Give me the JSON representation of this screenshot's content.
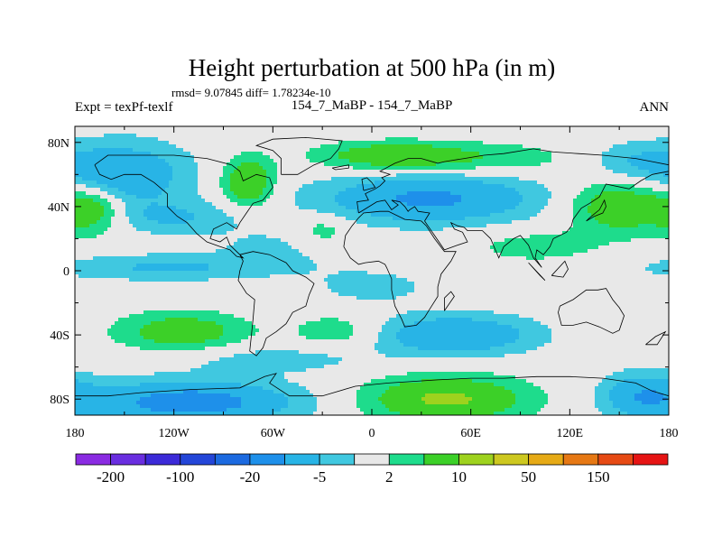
{
  "chart_data": {
    "type": "heatmap",
    "title": "Height perturbation at 500 hPa (in m)",
    "stats_text": "rmsd= 9.07845 diff= 1.78234e-10",
    "left_label": "Expt = texPf-texlf",
    "center_label": "154_7_MaBP - 154_7_MaBP",
    "right_label": "ANN",
    "xlim": [
      -180,
      180
    ],
    "ylim": [
      -90,
      90
    ],
    "x_ticks": [
      {
        "value": -180,
        "label": "180"
      },
      {
        "value": -120,
        "label": "120W"
      },
      {
        "value": -60,
        "label": "60W"
      },
      {
        "value": 0,
        "label": "0"
      },
      {
        "value": 60,
        "label": "60E"
      },
      {
        "value": 120,
        "label": "120E"
      },
      {
        "value": 180,
        "label": "180"
      }
    ],
    "y_ticks": [
      {
        "value": 80,
        "label": "80N"
      },
      {
        "value": 40,
        "label": "40N"
      },
      {
        "value": 0,
        "label": "0"
      },
      {
        "value": -40,
        "label": "40S"
      },
      {
        "value": -80,
        "label": "80S"
      }
    ],
    "colorbar": {
      "colors": [
        "#8a2be2",
        "#6a2ee0",
        "#3c2ad8",
        "#2446d8",
        "#1c6ae0",
        "#1e90ea",
        "#28b4e6",
        "#40c8e0",
        "#e8e8e8",
        "#1edc8c",
        "#3cd028",
        "#9ed21e",
        "#cdc820",
        "#e6aa16",
        "#e67814",
        "#e64a14",
        "#e61414"
      ],
      "labels": [
        {
          "after_box": 1,
          "text": "-200"
        },
        {
          "after_box": 3,
          "text": "-100"
        },
        {
          "after_box": 5,
          "text": "-20"
        },
        {
          "after_box": 7,
          "text": "-5"
        },
        {
          "after_box": 9,
          "text": "2"
        },
        {
          "after_box": 11,
          "text": "10"
        },
        {
          "after_box": 13,
          "text": "50"
        },
        {
          "after_box": 15,
          "text": "150"
        }
      ]
    },
    "field_blobs": [
      {
        "lon": -150,
        "lat": 60,
        "rx": 38,
        "ry": 20,
        "amp": -9
      },
      {
        "lon": -125,
        "lat": 2,
        "rx": 70,
        "ry": 8,
        "amp": -5.5
      },
      {
        "lon": -170,
        "lat": 38,
        "rx": 20,
        "ry": 14,
        "amp": 9
      },
      {
        "lon": -120,
        "lat": 33,
        "rx": 40,
        "ry": 10,
        "amp": -5
      },
      {
        "lon": -75,
        "lat": 55,
        "rx": 15,
        "ry": 15,
        "amp": 10
      },
      {
        "lon": -115,
        "lat": -38,
        "rx": 38,
        "ry": 12,
        "amp": 8
      },
      {
        "lon": -110,
        "lat": -82,
        "rx": 62,
        "ry": 13,
        "amp": -13
      },
      {
        "lon": -60,
        "lat": -55,
        "rx": 60,
        "ry": 9,
        "amp": -3.5
      },
      {
        "lon": 35,
        "lat": 45,
        "rx": 65,
        "ry": 15,
        "amp": -11
      },
      {
        "lon": 50,
        "lat": 70,
        "rx": 70,
        "ry": 10,
        "amp": 5
      },
      {
        "lon": 10,
        "lat": 72,
        "rx": 40,
        "ry": 8,
        "amp": 6
      },
      {
        "lon": 150,
        "lat": 40,
        "rx": 30,
        "ry": 16,
        "amp": 9
      },
      {
        "lon": 160,
        "lat": 68,
        "rx": 30,
        "ry": 12,
        "amp": -5
      },
      {
        "lon": 50,
        "lat": -40,
        "rx": 48,
        "ry": 12,
        "amp": -10
      },
      {
        "lon": 45,
        "lat": -80,
        "rx": 48,
        "ry": 14,
        "amp": 11
      },
      {
        "lon": 165,
        "lat": -78,
        "rx": 25,
        "ry": 14,
        "amp": -9
      },
      {
        "lon": 150,
        "lat": -40,
        "rx": 25,
        "ry": 11,
        "amp": 2
      },
      {
        "lon": -20,
        "lat": -38,
        "rx": 28,
        "ry": 11,
        "amp": 4.5
      },
      {
        "lon": -30,
        "lat": 25,
        "rx": 18,
        "ry": 10,
        "amp": 4
      },
      {
        "lon": 100,
        "lat": 15,
        "rx": 40,
        "ry": 10,
        "amp": 3.5
      },
      {
        "lon": -60,
        "lat": 15,
        "rx": 40,
        "ry": 12,
        "amp": -2.5
      },
      {
        "lon": 0,
        "lat": -10,
        "rx": 40,
        "ry": 12,
        "amp": -3
      }
    ],
    "coastlines": [
      [
        [
          -168,
          66
        ],
        [
          -160,
          72
        ],
        [
          -140,
          72
        ],
        [
          -120,
          72
        ],
        [
          -100,
          70
        ],
        [
          -85,
          66
        ],
        [
          -80,
          62
        ],
        [
          -78,
          56
        ],
        [
          -70,
          60
        ],
        [
          -62,
          58
        ],
        [
          -60,
          52
        ],
        [
          -66,
          44
        ],
        [
          -72,
          42
        ],
        [
          -76,
          36
        ],
        [
          -80,
          30
        ],
        [
          -82,
          26
        ],
        [
          -88,
          30
        ],
        [
          -96,
          26
        ],
        [
          -98,
          20
        ],
        [
          -92,
          18
        ],
        [
          -88,
          21
        ],
        [
          -86,
          16
        ],
        [
          -80,
          10
        ],
        [
          -78,
          8
        ],
        [
          -82,
          9
        ],
        [
          -86,
          13
        ],
        [
          -92,
          15
        ],
        [
          -100,
          18
        ],
        [
          -106,
          23
        ],
        [
          -112,
          30
        ],
        [
          -118,
          34
        ],
        [
          -124,
          40
        ],
        [
          -124,
          48
        ],
        [
          -132,
          55
        ],
        [
          -140,
          60
        ],
        [
          -150,
          60
        ],
        [
          -158,
          57
        ],
        [
          -165,
          60
        ],
        [
          -168,
          66
        ]
      ],
      [
        [
          -80,
          10
        ],
        [
          -72,
          12
        ],
        [
          -62,
          10
        ],
        [
          -52,
          5
        ],
        [
          -48,
          0
        ],
        [
          -40,
          -4
        ],
        [
          -35,
          -8
        ],
        [
          -38,
          -15
        ],
        [
          -40,
          -22
        ],
        [
          -48,
          -26
        ],
        [
          -52,
          -33
        ],
        [
          -58,
          -38
        ],
        [
          -64,
          -42
        ],
        [
          -66,
          -48
        ],
        [
          -70,
          -53
        ],
        [
          -74,
          -50
        ],
        [
          -73,
          -40
        ],
        [
          -72,
          -30
        ],
        [
          -71,
          -18
        ],
        [
          -76,
          -14
        ],
        [
          -81,
          -6
        ],
        [
          -80,
          0
        ],
        [
          -78,
          6
        ],
        [
          -80,
          10
        ]
      ],
      [
        [
          -17,
          15
        ],
        [
          -16,
          22
        ],
        [
          -12,
          28
        ],
        [
          -8,
          33
        ],
        [
          -5,
          36
        ],
        [
          5,
          37
        ],
        [
          10,
          37
        ],
        [
          20,
          32
        ],
        [
          30,
          31
        ],
        [
          33,
          28
        ],
        [
          38,
          20
        ],
        [
          44,
          12
        ],
        [
          51,
          12
        ],
        [
          48,
          6
        ],
        [
          42,
          -2
        ],
        [
          40,
          -10
        ],
        [
          40,
          -16
        ],
        [
          35,
          -24
        ],
        [
          32,
          -29
        ],
        [
          27,
          -34
        ],
        [
          20,
          -35
        ],
        [
          18,
          -30
        ],
        [
          14,
          -22
        ],
        [
          12,
          -12
        ],
        [
          12,
          -5
        ],
        [
          9,
          2
        ],
        [
          8,
          4
        ],
        [
          4,
          6
        ],
        [
          -4,
          5
        ],
        [
          -8,
          4
        ],
        [
          -13,
          8
        ],
        [
          -17,
          15
        ]
      ],
      [
        [
          -8,
          36
        ],
        [
          -9,
          43
        ],
        [
          -2,
          44
        ],
        [
          -4,
          48
        ],
        [
          2,
          51
        ],
        [
          5,
          53
        ],
        [
          8,
          56
        ],
        [
          6,
          58
        ],
        [
          11,
          60
        ],
        [
          5,
          62
        ],
        [
          14,
          67
        ],
        [
          22,
          70
        ],
        [
          30,
          70
        ],
        [
          40,
          67
        ],
        [
          44,
          68
        ],
        [
          56,
          70
        ],
        [
          68,
          72
        ],
        [
          80,
          73
        ],
        [
          98,
          76
        ],
        [
          110,
          74
        ],
        [
          125,
          73
        ],
        [
          140,
          72
        ],
        [
          160,
          70
        ],
        [
          170,
          68
        ],
        [
          180,
          66
        ],
        [
          180,
          62
        ],
        [
          170,
          60
        ],
        [
          163,
          56
        ],
        [
          156,
          51
        ],
        [
          142,
          54
        ],
        [
          138,
          46
        ],
        [
          132,
          42
        ],
        [
          127,
          39
        ],
        [
          122,
          32
        ],
        [
          121,
          28
        ],
        [
          118,
          24
        ],
        [
          110,
          20
        ],
        [
          108,
          15
        ],
        [
          104,
          10
        ],
        [
          100,
          13
        ],
        [
          99,
          8
        ],
        [
          103,
          2
        ],
        [
          98,
          8
        ],
        [
          95,
          16
        ],
        [
          90,
          22
        ],
        [
          86,
          20
        ],
        [
          80,
          15
        ],
        [
          77,
          8
        ],
        [
          72,
          20
        ],
        [
          67,
          25
        ],
        [
          58,
          25
        ],
        [
          56,
          27
        ],
        [
          52,
          28
        ],
        [
          48,
          30
        ],
        [
          50,
          26
        ],
        [
          55,
          24
        ],
        [
          58,
          18
        ],
        [
          52,
          16
        ],
        [
          44,
          13
        ],
        [
          38,
          22
        ],
        [
          34,
          28
        ],
        [
          32,
          31
        ],
        [
          35,
          36
        ],
        [
          28,
          37
        ],
        [
          26,
          40
        ],
        [
          23,
          38
        ],
        [
          22,
          37
        ],
        [
          20,
          40
        ],
        [
          17,
          43
        ],
        [
          12,
          44
        ],
        [
          16,
          41
        ],
        [
          12,
          38
        ],
        [
          8,
          44
        ],
        [
          3,
          43
        ],
        [
          -8,
          36
        ]
      ],
      [
        [
          114,
          -22
        ],
        [
          122,
          -18
        ],
        [
          130,
          -12
        ],
        [
          137,
          -12
        ],
        [
          142,
          -11
        ],
        [
          146,
          -18
        ],
        [
          150,
          -23
        ],
        [
          153,
          -28
        ],
        [
          150,
          -37
        ],
        [
          146,
          -39
        ],
        [
          138,
          -35
        ],
        [
          130,
          -32
        ],
        [
          122,
          -34
        ],
        [
          115,
          -34
        ],
        [
          113,
          -26
        ],
        [
          114,
          -22
        ]
      ],
      [
        [
          -180,
          -78
        ],
        [
          -160,
          -78
        ],
        [
          -140,
          -76
        ],
        [
          -110,
          -74
        ],
        [
          -80,
          -73
        ],
        [
          -65,
          -66
        ],
        [
          -58,
          -64
        ],
        [
          -62,
          -70
        ],
        [
          -50,
          -78
        ],
        [
          -30,
          -78
        ],
        [
          -10,
          -72
        ],
        [
          10,
          -70
        ],
        [
          40,
          -68
        ],
        [
          60,
          -67
        ],
        [
          80,
          -67
        ],
        [
          100,
          -66
        ],
        [
          120,
          -66
        ],
        [
          140,
          -67
        ],
        [
          160,
          -70
        ],
        [
          170,
          -75
        ],
        [
          180,
          -78
        ]
      ],
      [
        [
          -55,
          60
        ],
        [
          -45,
          60
        ],
        [
          -35,
          66
        ],
        [
          -25,
          70
        ],
        [
          -20,
          76
        ],
        [
          -18,
          81
        ],
        [
          -40,
          83
        ],
        [
          -60,
          82
        ],
        [
          -70,
          78
        ],
        [
          -60,
          75
        ],
        [
          -55,
          70
        ],
        [
          -55,
          60
        ]
      ],
      [
        [
          -5,
          50
        ],
        [
          2,
          52
        ],
        [
          0,
          55
        ],
        [
          -3,
          58
        ],
        [
          -6,
          57
        ],
        [
          -5,
          50
        ]
      ],
      [
        [
          130,
          31
        ],
        [
          135,
          34
        ],
        [
          140,
          36
        ],
        [
          142,
          40
        ],
        [
          141,
          44
        ],
        [
          138,
          38
        ],
        [
          132,
          33
        ],
        [
          130,
          31
        ]
      ],
      [
        [
          44,
          -25
        ],
        [
          50,
          -16
        ],
        [
          48,
          -13
        ],
        [
          44,
          -17
        ],
        [
          44,
          -25
        ]
      ],
      [
        [
          95,
          5
        ],
        [
          105,
          -6
        ],
        [
          102,
          -3
        ],
        [
          95,
          5
        ]
      ],
      [
        [
          109,
          -3
        ],
        [
          117,
          6
        ],
        [
          119,
          1
        ],
        [
          116,
          -4
        ],
        [
          109,
          -3
        ]
      ],
      [
        [
          166,
          -46
        ],
        [
          172,
          -41
        ],
        [
          178,
          -38
        ],
        [
          173,
          -46
        ],
        [
          166,
          -46
        ]
      ],
      [
        [
          -24,
          64
        ],
        [
          -14,
          66
        ],
        [
          -14,
          64
        ],
        [
          -22,
          63
        ],
        [
          -24,
          64
        ]
      ]
    ]
  }
}
